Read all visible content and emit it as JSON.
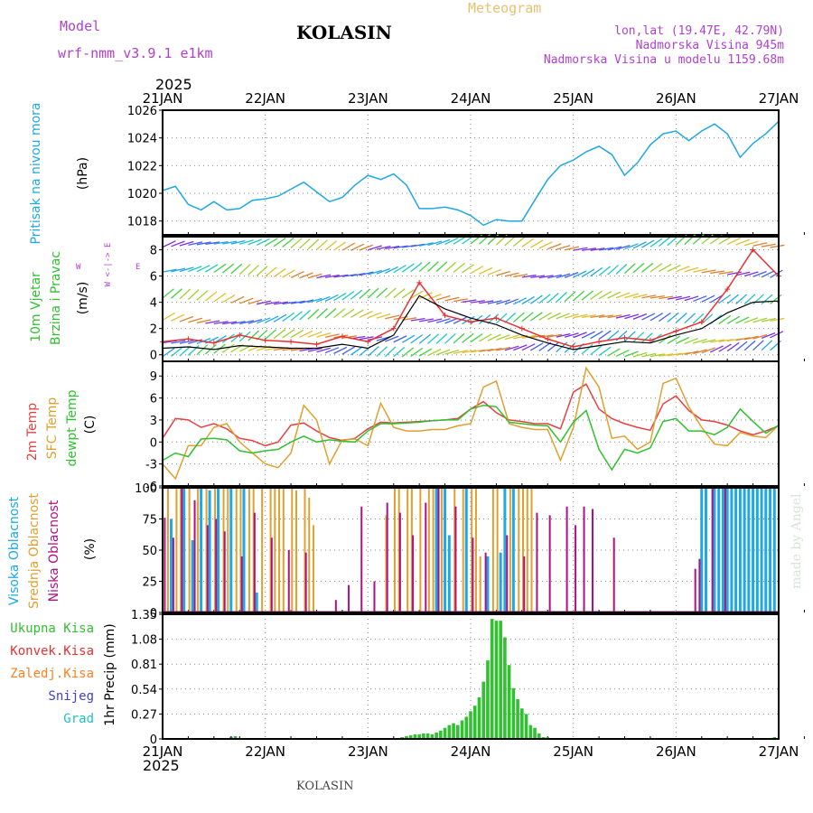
{
  "header": {
    "model_label": "Model",
    "model_name": "wrf-nmm_v3.9.1 e1km",
    "station": "KOLASIN",
    "title": "Meteogram",
    "lonlat": "lon,lat (19.47E, 42.79N)",
    "elevation": "Nadmorska Visina 945m",
    "model_elevation": "Nadmorska Visina u modelu 1159.68m",
    "footer_station": "KOLASIN",
    "watermark": "made by Angel",
    "year": "2025"
  },
  "colors": {
    "pressure": "#1ea8e6",
    "wind_speed": "#e83030",
    "wind_gust": "#000000",
    "t2m": "#e84040",
    "sfc": "#e0a030",
    "dewpt": "#30c030",
    "cloud_high": "#1ea8e6",
    "cloud_mid": "#e0a030",
    "cloud_low": "#b01080",
    "precip_total": "#30c030",
    "precip_conv": "#e83030",
    "precip_frz": "#ff8020",
    "precip_snow": "#4040d0",
    "precip_grad": "#20c0c0",
    "label_purple": "#b040d0"
  },
  "panel_labels": {
    "pressure": {
      "line1": "Pritisak na nivou mora",
      "unit": "(hPa)"
    },
    "wind": {
      "line1": "10m Vjetar",
      "line2": "Brzina i Pravac",
      "unit": "(m/s)",
      "compass_n": "N",
      "compass_e": "E",
      "compass_w": "W",
      "compass_s": "S",
      "compass_line": "W <-|-> E"
    },
    "temp": {
      "t2m": "2m Temp",
      "sfc": "SFC Temp",
      "dewpt": "dewpt Temp",
      "unit": "(C)"
    },
    "cloud": {
      "high": "Visoka Oblacnost",
      "mid": "Srednja Oblacnost",
      "low": "Niska Oblacnost",
      "unit": "(%)"
    },
    "precip": {
      "total": "Ukupna Kisa",
      "conv": "Konvek.Kisa",
      "frz": "Zaledj.Kisa",
      "snow": "Snijeg",
      "grad": "Grad",
      "unit": "1hr Precip (mm)"
    }
  },
  "chart_data": [
    {
      "type": "line",
      "title": "Pritisak na nivou mora",
      "ylabel": "(hPa)",
      "x_ticks": [
        "21JAN",
        "22JAN",
        "23JAN",
        "24JAN",
        "25JAN",
        "26JAN",
        "27JAN"
      ],
      "x_unit": "hours since 21JAN 00",
      "ylim": [
        1017,
        1026
      ],
      "y_ticks": [
        1018,
        1020,
        1022,
        1024,
        1026
      ],
      "series": [
        {
          "name": "Pritisak na nivou mora",
          "x": [
            0,
            3,
            6,
            9,
            12,
            15,
            18,
            21,
            24,
            27,
            30,
            33,
            36,
            39,
            42,
            45,
            48,
            51,
            54,
            57,
            60,
            63,
            66,
            69,
            72,
            75,
            78,
            81,
            84,
            87,
            90,
            93,
            96,
            99,
            102,
            105,
            108,
            111,
            114,
            117,
            120,
            123,
            126,
            129,
            132,
            135,
            138,
            141,
            144
          ],
          "values": [
            1020.2,
            1020.5,
            1019.2,
            1018.8,
            1019.4,
            1018.8,
            1018.9,
            1019.5,
            1019.6,
            1019.8,
            1020.3,
            1020.8,
            1020.1,
            1019.4,
            1019.7,
            1020.6,
            1021.3,
            1021.0,
            1021.4,
            1020.6,
            1018.9,
            1018.9,
            1019.0,
            1018.8,
            1018.4,
            1017.7,
            1018.1,
            1018.0,
            1018.0,
            1019.5,
            1021.0,
            1022.0,
            1022.4,
            1023.0,
            1023.4,
            1022.8,
            1021.3,
            1022.2,
            1023.5,
            1024.3,
            1024.5,
            1023.8,
            1024.5,
            1025.0,
            1024.3,
            1022.6,
            1023.6,
            1024.3,
            1025.2
          ]
        }
      ],
      "grid": true
    },
    {
      "type": "line",
      "title": "10m Vjetar Brzina i Pravac",
      "ylabel": "(m/s)",
      "ylim": [
        -0.5,
        9
      ],
      "y_ticks": [
        0,
        2,
        4,
        6,
        8
      ],
      "series": [
        {
          "name": "Brzina",
          "x": [
            0,
            6,
            12,
            18,
            24,
            30,
            36,
            42,
            48,
            54,
            60,
            66,
            72,
            78,
            84,
            90,
            96,
            102,
            108,
            114,
            120,
            126,
            132,
            138,
            144
          ],
          "values": [
            1.0,
            1.2,
            0.9,
            1.5,
            1.1,
            1.0,
            0.8,
            1.4,
            1.0,
            2.0,
            5.5,
            3.0,
            2.5,
            2.8,
            2.0,
            1.2,
            0.6,
            1.0,
            1.3,
            1.1,
            1.8,
            2.5,
            5.0,
            8.0,
            6.0
          ]
        },
        {
          "name": "Udar",
          "x": [
            0,
            6,
            12,
            18,
            24,
            30,
            36,
            42,
            48,
            54,
            60,
            66,
            72,
            78,
            84,
            90,
            96,
            102,
            108,
            114,
            120,
            126,
            132,
            138,
            144
          ],
          "values": [
            0.5,
            0.6,
            0.4,
            0.7,
            0.6,
            0.5,
            0.5,
            0.8,
            0.5,
            1.5,
            4.5,
            3.5,
            2.8,
            2.3,
            1.5,
            0.9,
            0.4,
            0.7,
            1.0,
            0.9,
            1.5,
            2.0,
            3.2,
            4.0,
            4.1
          ]
        }
      ],
      "grid": true
    },
    {
      "type": "line",
      "title": "Temperature",
      "ylabel": "(C)",
      "ylim": [
        -6,
        11
      ],
      "y_ticks": [
        -6,
        -3,
        0,
        3,
        6,
        9
      ],
      "series": [
        {
          "name": "2m Temp",
          "x": [
            0,
            3,
            6,
            9,
            12,
            15,
            18,
            21,
            24,
            27,
            30,
            33,
            36,
            39,
            42,
            45,
            48,
            51,
            54,
            57,
            60,
            63,
            66,
            69,
            72,
            75,
            78,
            81,
            84,
            87,
            90,
            93,
            96,
            99,
            102,
            105,
            108,
            111,
            114,
            117,
            120,
            123,
            126,
            129,
            132,
            135,
            138,
            141,
            144
          ],
          "values": [
            0.5,
            3.2,
            3.0,
            2.0,
            2.5,
            1.8,
            0.5,
            0.2,
            -0.5,
            0,
            2.3,
            2.6,
            1.5,
            0.6,
            0.2,
            0.5,
            1.8,
            2.7,
            2.6,
            2.7,
            2.8,
            2.9,
            3.0,
            3.2,
            4.5,
            5.5,
            4.0,
            3.0,
            2.8,
            2.5,
            2.5,
            1.8,
            6.8,
            7.9,
            4.5,
            3.2,
            2.5,
            2.0,
            1.6,
            5.2,
            6.3,
            4.3,
            3.0,
            2.8,
            2.3,
            1.5,
            1.0,
            1.5,
            2.2
          ]
        },
        {
          "name": "SFC Temp",
          "x": [
            0,
            3,
            6,
            9,
            12,
            15,
            18,
            21,
            24,
            27,
            30,
            33,
            36,
            39,
            42,
            45,
            48,
            51,
            54,
            57,
            60,
            63,
            66,
            69,
            72,
            75,
            78,
            81,
            84,
            87,
            90,
            93,
            96,
            99,
            102,
            105,
            108,
            111,
            114,
            117,
            120,
            123,
            126,
            129,
            132,
            135,
            138,
            141,
            144
          ],
          "values": [
            -3,
            -5,
            -0.5,
            -0.5,
            2.0,
            2.5,
            0,
            -1.5,
            -3.0,
            -3.5,
            -1.5,
            5.0,
            3.0,
            -3.0,
            0.3,
            0.4,
            -0.5,
            5.3,
            2.0,
            1.5,
            1.5,
            1.7,
            1.7,
            2.2,
            2.5,
            7.5,
            8.3,
            2.5,
            2.0,
            1.7,
            1.7,
            -2.5,
            2.0,
            10.1,
            7.5,
            0.5,
            0.8,
            -1.0,
            0,
            8.0,
            8.7,
            4.8,
            2.0,
            -0.3,
            -0.5,
            1.3,
            0.8,
            0.6,
            2.3
          ]
        },
        {
          "name": "dewpt Temp",
          "x": [
            0,
            3,
            6,
            9,
            12,
            15,
            18,
            21,
            24,
            27,
            30,
            33,
            36,
            39,
            42,
            45,
            48,
            51,
            54,
            57,
            60,
            63,
            66,
            69,
            72,
            75,
            78,
            81,
            84,
            87,
            90,
            93,
            96,
            99,
            102,
            105,
            108,
            111,
            114,
            117,
            120,
            123,
            126,
            129,
            132,
            135,
            138,
            141,
            144
          ],
          "values": [
            -2.5,
            -1.5,
            -2.0,
            0.4,
            0.5,
            0.3,
            -1.2,
            -1.5,
            -1.2,
            -1.0,
            0,
            0.8,
            0,
            0.3,
            0.1,
            0,
            1.5,
            2.5,
            2.5,
            2.6,
            2.7,
            2.9,
            3.0,
            3.0,
            4.5,
            5.0,
            4.8,
            2.7,
            2.5,
            2.3,
            2.2,
            0,
            2.7,
            4.3,
            -1.0,
            -3.8,
            -1.0,
            -1.5,
            -0.8,
            2.8,
            3.2,
            1.5,
            1.5,
            1.0,
            2.0,
            4.5,
            2.8,
            1.2,
            2.3
          ]
        }
      ],
      "grid": true
    },
    {
      "type": "bar",
      "title": "Oblacnost",
      "ylabel": "(%)",
      "ylim": [
        0,
        100
      ],
      "y_ticks": [
        0,
        25,
        50,
        75,
        100
      ],
      "series": [
        {
          "name": "Visoka Oblacnost",
          "x": [
            2,
            5,
            7,
            9,
            11,
            13,
            16,
            19,
            22,
            64,
            66,
            67,
            71,
            76,
            79,
            80,
            82,
            126,
            127,
            129,
            130,
            131,
            132,
            133,
            134,
            135,
            136,
            137,
            138,
            139,
            140,
            141,
            142,
            143
          ],
          "values": [
            75,
            100,
            58,
            100,
            98,
            100,
            100,
            100,
            16,
            100,
            100,
            62,
            100,
            45,
            48,
            100,
            100,
            100,
            100,
            100,
            100,
            100,
            100,
            100,
            100,
            100,
            100,
            100,
            100,
            100,
            100,
            100,
            100,
            100
          ]
        },
        {
          "name": "Srednja Oblacnost",
          "x": [
            1,
            3,
            4,
            6,
            8,
            10,
            12,
            14,
            15,
            17,
            18,
            20,
            21,
            23,
            25,
            26,
            27,
            28,
            30,
            31,
            33,
            34,
            35,
            52,
            54,
            55,
            57,
            58,
            60,
            62,
            63,
            65,
            68,
            70,
            72,
            73,
            74,
            77,
            78,
            81,
            83,
            84,
            85,
            86
          ],
          "values": [
            100,
            100,
            100,
            100,
            100,
            100,
            100,
            100,
            100,
            100,
            100,
            100,
            100,
            100,
            100,
            100,
            100,
            100,
            100,
            98,
            100,
            92,
            70,
            78,
            100,
            100,
            100,
            100,
            100,
            100,
            100,
            100,
            100,
            100,
            100,
            100,
            45,
            100,
            100,
            100,
            100,
            100,
            100,
            100
          ]
        },
        {
          "name": "Niska Oblacnost",
          "x": [
            0,
            2,
            4,
            7,
            10,
            12,
            14,
            18,
            21,
            25,
            29,
            33,
            40,
            43,
            46,
            49,
            52,
            55,
            58,
            61,
            64,
            68,
            72,
            75,
            80,
            84,
            87,
            90,
            94,
            96,
            98,
            100,
            105,
            124,
            125,
            128,
            131
          ],
          "values": [
            76,
            60,
            100,
            90,
            70,
            75,
            65,
            45,
            80,
            60,
            50,
            48,
            10,
            22,
            85,
            25,
            88,
            80,
            62,
            88,
            100,
            85,
            60,
            48,
            62,
            45,
            80,
            78,
            85,
            70,
            85,
            83,
            60,
            35,
            43,
            100,
            100
          ]
        }
      ],
      "grid": true
    },
    {
      "type": "bar",
      "title": "1hr Precip",
      "ylabel": "1hr Precip (mm)",
      "ylim": [
        0,
        1.35
      ],
      "y_ticks": [
        0,
        0.27,
        0.54,
        0.81,
        1.08,
        1.35
      ],
      "series": [
        {
          "name": "Ukupna Kisa",
          "x": [
            16,
            17,
            55,
            56,
            57,
            58,
            59,
            60,
            61,
            62,
            63,
            64,
            65,
            66,
            67,
            68,
            69,
            70,
            71,
            72,
            73,
            74,
            75,
            76,
            77,
            78,
            79,
            80,
            81,
            82,
            83,
            84,
            85,
            86,
            87,
            88,
            89,
            90,
            143
          ],
          "values": [
            0.02,
            0.03,
            0.01,
            0.02,
            0.03,
            0.04,
            0.05,
            0.05,
            0.06,
            0.06,
            0.05,
            0.07,
            0.09,
            0.12,
            0.15,
            0.17,
            0.15,
            0.2,
            0.24,
            0.3,
            0.36,
            0.45,
            0.62,
            0.85,
            1.3,
            1.28,
            1.28,
            1.1,
            0.8,
            0.55,
            0.43,
            0.33,
            0.27,
            0.15,
            0.12,
            0.06,
            0.02,
            0.02,
            0.02
          ]
        },
        {
          "name": "Snijeg",
          "x": [
            16
          ],
          "values": [
            0.03
          ]
        }
      ],
      "grid": true
    }
  ]
}
